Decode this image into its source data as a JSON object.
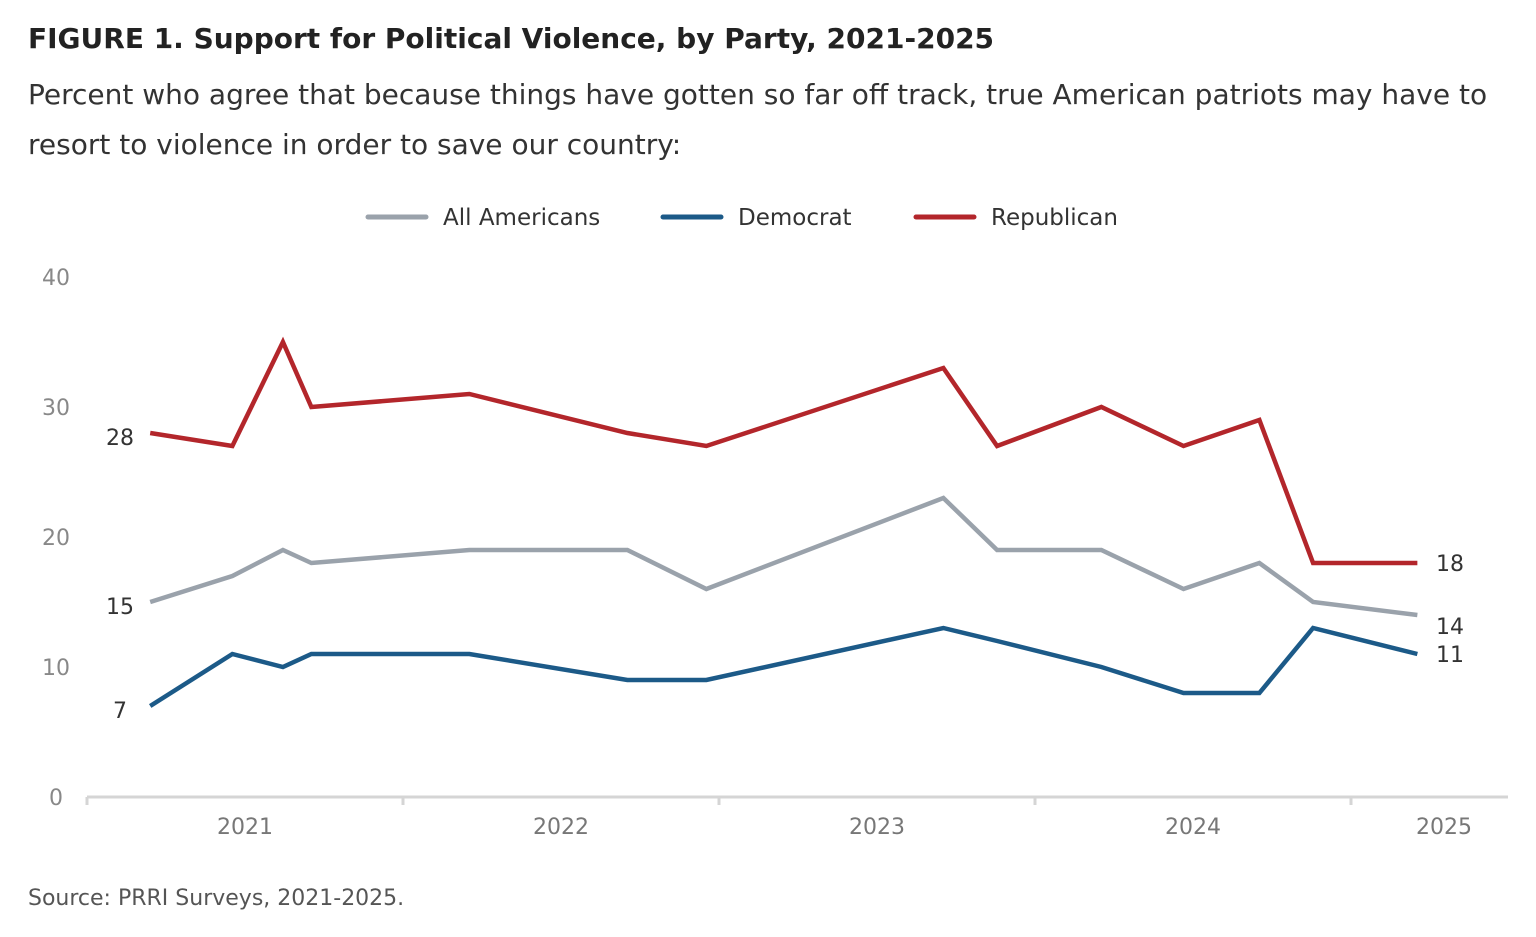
{
  "chart_data": {
    "type": "line",
    "title": "FIGURE 1.  Support for Political Violence, by Party, 2021-2025",
    "subtitle": "Percent who agree that because things have gotten so far off track, true American patriots may have to resort to violence in order to save our country:",
    "source": "Source: PRRI Surveys, 2021-2025.",
    "xlabel": "",
    "ylabel": "",
    "ylim": [
      0,
      40
    ],
    "yticks": [
      "0",
      "10",
      "20",
      "30",
      "40"
    ],
    "xticks": [
      "2021",
      "2022",
      "2023",
      "2024",
      "2025"
    ],
    "grid": false,
    "legend_position": "top",
    "x": [
      2021.2,
      2021.46,
      2021.62,
      2021.71,
      2022.21,
      2022.71,
      2022.96,
      2023.71,
      2023.88,
      2024.21,
      2024.47,
      2024.71,
      2024.88,
      2025.21
    ],
    "series": [
      {
        "name": "All Americans",
        "color": "#9aa2ab",
        "values": [
          15,
          17,
          19,
          18,
          19,
          19,
          16,
          23,
          19,
          19,
          16,
          18,
          15,
          14
        ],
        "start_label": "15",
        "end_label": "14"
      },
      {
        "name": "Democrat",
        "color": "#1c5a88",
        "values": [
          7,
          11,
          10,
          11,
          11,
          9,
          9,
          13,
          12,
          10,
          8,
          8,
          13,
          11
        ],
        "start_label": "7",
        "end_label": "11"
      },
      {
        "name": "Republican",
        "color": "#b3262b",
        "values": [
          28,
          27,
          35,
          30,
          31,
          28,
          27,
          33,
          27,
          30,
          27,
          29,
          18,
          18
        ],
        "start_label": "28",
        "end_label": "18"
      }
    ]
  }
}
